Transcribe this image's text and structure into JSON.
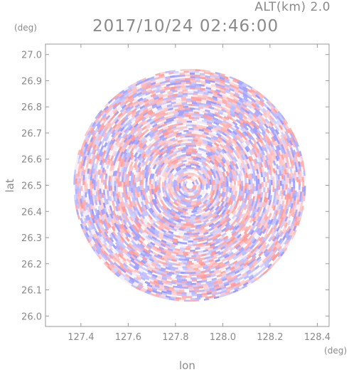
{
  "header": {
    "altitude_label": "ALT(km) 2.0",
    "datetime": "2017/10/24 02:46:00"
  },
  "axes": {
    "x_unit": "(deg)",
    "y_unit": "(deg)",
    "x_label": "lon",
    "y_label": "lat"
  },
  "colors": {
    "positive": "#ff8f8f",
    "negative": "#8f8fff",
    "frame": "#9a9a9a",
    "text": "#8a8a8a"
  },
  "chart_data": {
    "type": "heatmap",
    "title": "2017/10/24 02:46:00",
    "xlabel": "lon",
    "ylabel": "lat",
    "x_unit": "(deg)",
    "y_unit": "(deg)",
    "xlim": [
      127.25,
      128.45
    ],
    "ylim": [
      25.96,
      27.04
    ],
    "x_ticks": [
      127.4,
      127.6,
      127.8,
      128.0,
      128.2,
      128.4
    ],
    "x_tick_labels": [
      "127.4",
      "127.6",
      "127.8",
      "128.0",
      "128.2",
      "128.4"
    ],
    "y_ticks": [
      26.0,
      26.1,
      26.2,
      26.3,
      26.4,
      26.5,
      26.6,
      26.7,
      26.8,
      26.9,
      27.0
    ],
    "y_tick_labels": [
      "26.0",
      "26.1",
      "26.2",
      "26.3",
      "26.4",
      "26.5",
      "26.6",
      "26.7",
      "26.8",
      "26.9",
      "27.0"
    ],
    "center": {
      "lon": 127.86,
      "lat": 26.5
    },
    "coverage_radius_deg_lat": 0.445,
    "grid": false,
    "colorscale": "diverging blue-white-red"
  }
}
